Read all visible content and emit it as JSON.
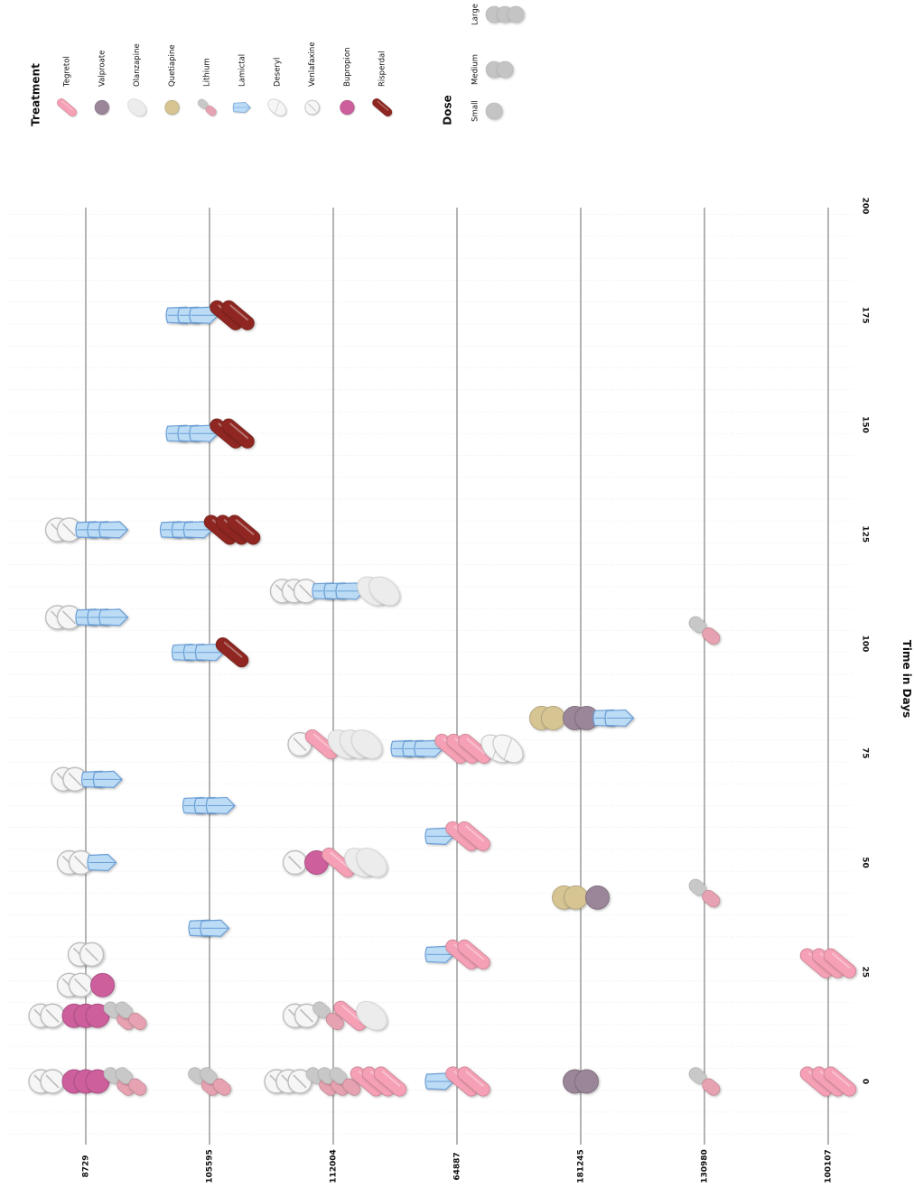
{
  "chart_data": {
    "type": "scatter",
    "xlabel": "Time in Days",
    "xlim": [
      -15,
      202
    ],
    "x_ticks": [
      "0",
      "25",
      "50",
      "75",
      "100",
      "125",
      "150",
      "175",
      "200"
    ],
    "x_tick_values": [
      0,
      25,
      50,
      75,
      100,
      125,
      150,
      175,
      200
    ],
    "grid": true,
    "legend_placement": "top",
    "legend": {
      "treatment_title": "Treatment",
      "dose_title": "Dose",
      "treatments": [
        {
          "name": "Tegretol",
          "shape": "capsule",
          "color": "#f5a0b4"
        },
        {
          "name": "Valproate",
          "shape": "round",
          "color": "#9a8698"
        },
        {
          "name": "Olanzapine",
          "shape": "oval",
          "color": "#ececec"
        },
        {
          "name": "Quetiapine",
          "shape": "round",
          "color": "#d6c493"
        },
        {
          "name": "Lithium",
          "shape": "capsule2",
          "color": "#e6a2b0"
        },
        {
          "name": "Lamictal",
          "shape": "shield",
          "color": "#bcdcf6"
        },
        {
          "name": "Deseryl",
          "shape": "oval-scored",
          "color": "#f6f6f6"
        },
        {
          "name": "Venlafaxine",
          "shape": "round-scored",
          "color": "#f6f6f6"
        },
        {
          "name": "Bupropion",
          "shape": "round",
          "color": "#cd5f9d"
        },
        {
          "name": "Risperdal",
          "shape": "capsule",
          "color": "#8f2821"
        }
      ],
      "doses": [
        {
          "name": "Small",
          "count": 1
        },
        {
          "name": "Medium",
          "count": 2
        },
        {
          "name": "Large",
          "count": 3
        }
      ]
    },
    "patients": [
      "8729",
      "105595",
      "112004",
      "64887",
      "181245",
      "130980",
      "100107"
    ],
    "series": [
      {
        "patient": "8729",
        "events": [
          {
            "day": 0,
            "drugs": [
              [
                "Venlafaxine",
                2
              ],
              [
                "Bupropion",
                3
              ],
              [
                "Lithium",
                2
              ]
            ]
          },
          {
            "day": 15,
            "drugs": [
              [
                "Venlafaxine",
                2
              ],
              [
                "Bupropion",
                3
              ],
              [
                "Lithium",
                2
              ]
            ]
          },
          {
            "day": 22,
            "drugs": [
              [
                "Venlafaxine",
                2
              ],
              [
                "Bupropion",
                1
              ]
            ]
          },
          {
            "day": 29,
            "drugs": [
              [
                "Venlafaxine",
                2
              ]
            ]
          },
          {
            "day": 50,
            "drugs": [
              [
                "Venlafaxine",
                2
              ],
              [
                "Lamictal",
                1
              ]
            ]
          },
          {
            "day": 69,
            "drugs": [
              [
                "Venlafaxine",
                2
              ],
              [
                "Lamictal",
                2
              ]
            ]
          },
          {
            "day": 106,
            "drugs": [
              [
                "Venlafaxine",
                2
              ],
              [
                "Lamictal",
                3
              ]
            ]
          },
          {
            "day": 126,
            "drugs": [
              [
                "Venlafaxine",
                2
              ],
              [
                "Lamictal",
                3
              ]
            ]
          }
        ]
      },
      {
        "patient": "105595",
        "events": [
          {
            "day": 0,
            "drugs": [
              [
                "Lithium",
                2
              ]
            ]
          },
          {
            "day": 35,
            "drugs": [
              [
                "Lamictal",
                2
              ]
            ]
          },
          {
            "day": 63,
            "drugs": [
              [
                "Lamictal",
                3
              ]
            ]
          },
          {
            "day": 98,
            "drugs": [
              [
                "Lamictal",
                3
              ],
              [
                "Risperdal",
                1
              ]
            ]
          },
          {
            "day": 126,
            "drugs": [
              [
                "Lamictal",
                3
              ],
              [
                "Risperdal",
                3
              ]
            ]
          },
          {
            "day": 148,
            "drugs": [
              [
                "Lamictal",
                3
              ],
              [
                "Risperdal",
                2
              ]
            ]
          },
          {
            "day": 175,
            "drugs": [
              [
                "Lamictal",
                3
              ],
              [
                "Risperdal",
                2
              ]
            ]
          }
        ]
      },
      {
        "patient": "112004",
        "events": [
          {
            "day": 0,
            "drugs": [
              [
                "Venlafaxine",
                3
              ],
              [
                "Lithium",
                3
              ],
              [
                "Tegretol",
                3
              ]
            ]
          },
          {
            "day": 15,
            "drugs": [
              [
                "Venlafaxine",
                2
              ],
              [
                "Lithium",
                1
              ],
              [
                "Tegretol",
                1
              ],
              [
                "Olanzapine",
                1
              ]
            ]
          },
          {
            "day": 50,
            "drugs": [
              [
                "Venlafaxine",
                1
              ],
              [
                "Bupropion",
                1
              ],
              [
                "Tegretol",
                1
              ],
              [
                "Olanzapine",
                2
              ]
            ]
          },
          {
            "day": 77,
            "drugs": [
              [
                "Venlafaxine",
                1
              ],
              [
                "Tegretol",
                1
              ],
              [
                "Olanzapine",
                3
              ]
            ]
          },
          {
            "day": 112,
            "drugs": [
              [
                "Venlafaxine",
                3
              ],
              [
                "Lamictal",
                3
              ],
              [
                "Olanzapine",
                2
              ]
            ]
          }
        ]
      },
      {
        "patient": "64887",
        "events": [
          {
            "day": 0,
            "drugs": [
              [
                "Lamictal",
                1
              ],
              [
                "Tegretol",
                2
              ]
            ]
          },
          {
            "day": 29,
            "drugs": [
              [
                "Lamictal",
                1
              ],
              [
                "Tegretol",
                2
              ]
            ]
          },
          {
            "day": 56,
            "drugs": [
              [
                "Lamictal",
                1
              ],
              [
                "Tegretol",
                2
              ]
            ]
          },
          {
            "day": 76,
            "drugs": [
              [
                "Lamictal",
                3
              ],
              [
                "Tegretol",
                3
              ],
              [
                "Deseryl",
                2
              ]
            ]
          }
        ]
      },
      {
        "patient": "181245",
        "events": [
          {
            "day": 0,
            "drugs": [
              [
                "Valproate",
                2
              ]
            ]
          },
          {
            "day": 42,
            "drugs": [
              [
                "Quetiapine",
                2
              ],
              [
                "Valproate",
                1
              ]
            ]
          },
          {
            "day": 83,
            "drugs": [
              [
                "Quetiapine",
                2
              ],
              [
                "Valproate",
                2
              ],
              [
                "Lamictal",
                2
              ]
            ]
          }
        ]
      },
      {
        "patient": "130980",
        "events": [
          {
            "day": 0,
            "drugs": [
              [
                "Lithium",
                1
              ]
            ]
          },
          {
            "day": 43,
            "drugs": [
              [
                "Lithium",
                1
              ]
            ]
          },
          {
            "day": 103,
            "drugs": [
              [
                "Lithium",
                1
              ]
            ]
          }
        ]
      },
      {
        "patient": "100107",
        "events": [
          {
            "day": 0,
            "drugs": [
              [
                "Tegretol",
                3
              ]
            ]
          },
          {
            "day": 27,
            "drugs": [
              [
                "Tegretol",
                3
              ]
            ]
          }
        ]
      }
    ]
  }
}
